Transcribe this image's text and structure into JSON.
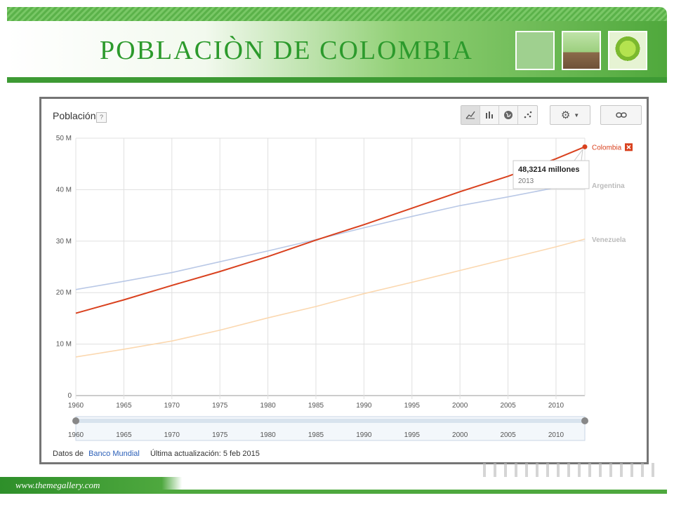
{
  "slide": {
    "title": "POBLACIÒN DE COLOMBIA",
    "footer_url": "www.themegallery.com"
  },
  "chart_panel": {
    "title": "Población",
    "help_label": "?",
    "source_prefix": "Datos de",
    "source_link": "Banco Mundial",
    "updated_text": "Última actualización: 5 feb 2015",
    "tooltip_value": "48,3214 millones",
    "tooltip_year": "2013",
    "legend_remove_icon": "close-icon",
    "toolbar_icons": [
      "line-chart-icon",
      "bar-chart-icon",
      "globe-icon",
      "scatter-icon",
      "gear-icon",
      "chevron-down-icon",
      "link-icon"
    ]
  },
  "colors": {
    "colombia": "#d9411e",
    "argentina": "#b9c8e6",
    "venezuela": "#fbd8b0",
    "grid": "#e0e0e0",
    "green": "#3d9a34"
  },
  "chart_data": {
    "type": "line",
    "x": [
      1960,
      1965,
      1970,
      1975,
      1980,
      1985,
      1990,
      1995,
      2000,
      2005,
      2010,
      2013
    ],
    "xticks": [
      "1960",
      "1965",
      "1970",
      "1975",
      "1980",
      "1985",
      "1990",
      "1995",
      "2000",
      "2005",
      "2010"
    ],
    "xlim": [
      1960,
      2013
    ],
    "yticks": [
      "0",
      "10 M",
      "20 M",
      "30 M",
      "40 M",
      "50 M"
    ],
    "ylim": [
      0,
      50
    ],
    "grid": true,
    "legend_placement": "right",
    "series": [
      {
        "name": "Colombia",
        "values": [
          16.0,
          18.6,
          21.4,
          24.1,
          27.0,
          30.2,
          33.2,
          36.4,
          39.6,
          42.6,
          46.0,
          48.3214
        ]
      },
      {
        "name": "Argentina",
        "values": [
          20.6,
          22.2,
          23.9,
          26.0,
          28.1,
          30.3,
          32.6,
          34.8,
          36.9,
          38.6,
          40.4,
          41.4
        ]
      },
      {
        "name": "Venezuela",
        "values": [
          7.5,
          9.0,
          10.6,
          12.7,
          15.1,
          17.3,
          19.8,
          22.0,
          24.3,
          26.6,
          28.9,
          30.4
        ]
      }
    ]
  }
}
